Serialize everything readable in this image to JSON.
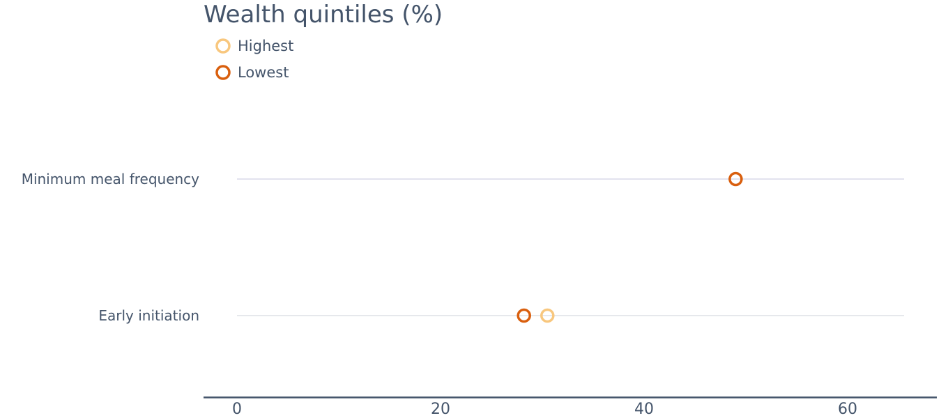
{
  "chart_data": {
    "type": "scatter",
    "title": "Wealth quintiles (%)",
    "categories": [
      "Minimum meal frequency",
      "Early initiation"
    ],
    "series": [
      {
        "name": "Highest",
        "color": "#f8c77e",
        "values": [
          null,
          30.5
        ]
      },
      {
        "name": "Lowest",
        "color": "#d95f0e",
        "values": [
          49,
          28.2
        ]
      }
    ],
    "x_ticks": [
      0,
      20,
      40,
      60
    ],
    "xlim": [
      0,
      66
    ],
    "xlabel": "",
    "ylabel": "",
    "legend_position": "top-left",
    "grid": false
  }
}
